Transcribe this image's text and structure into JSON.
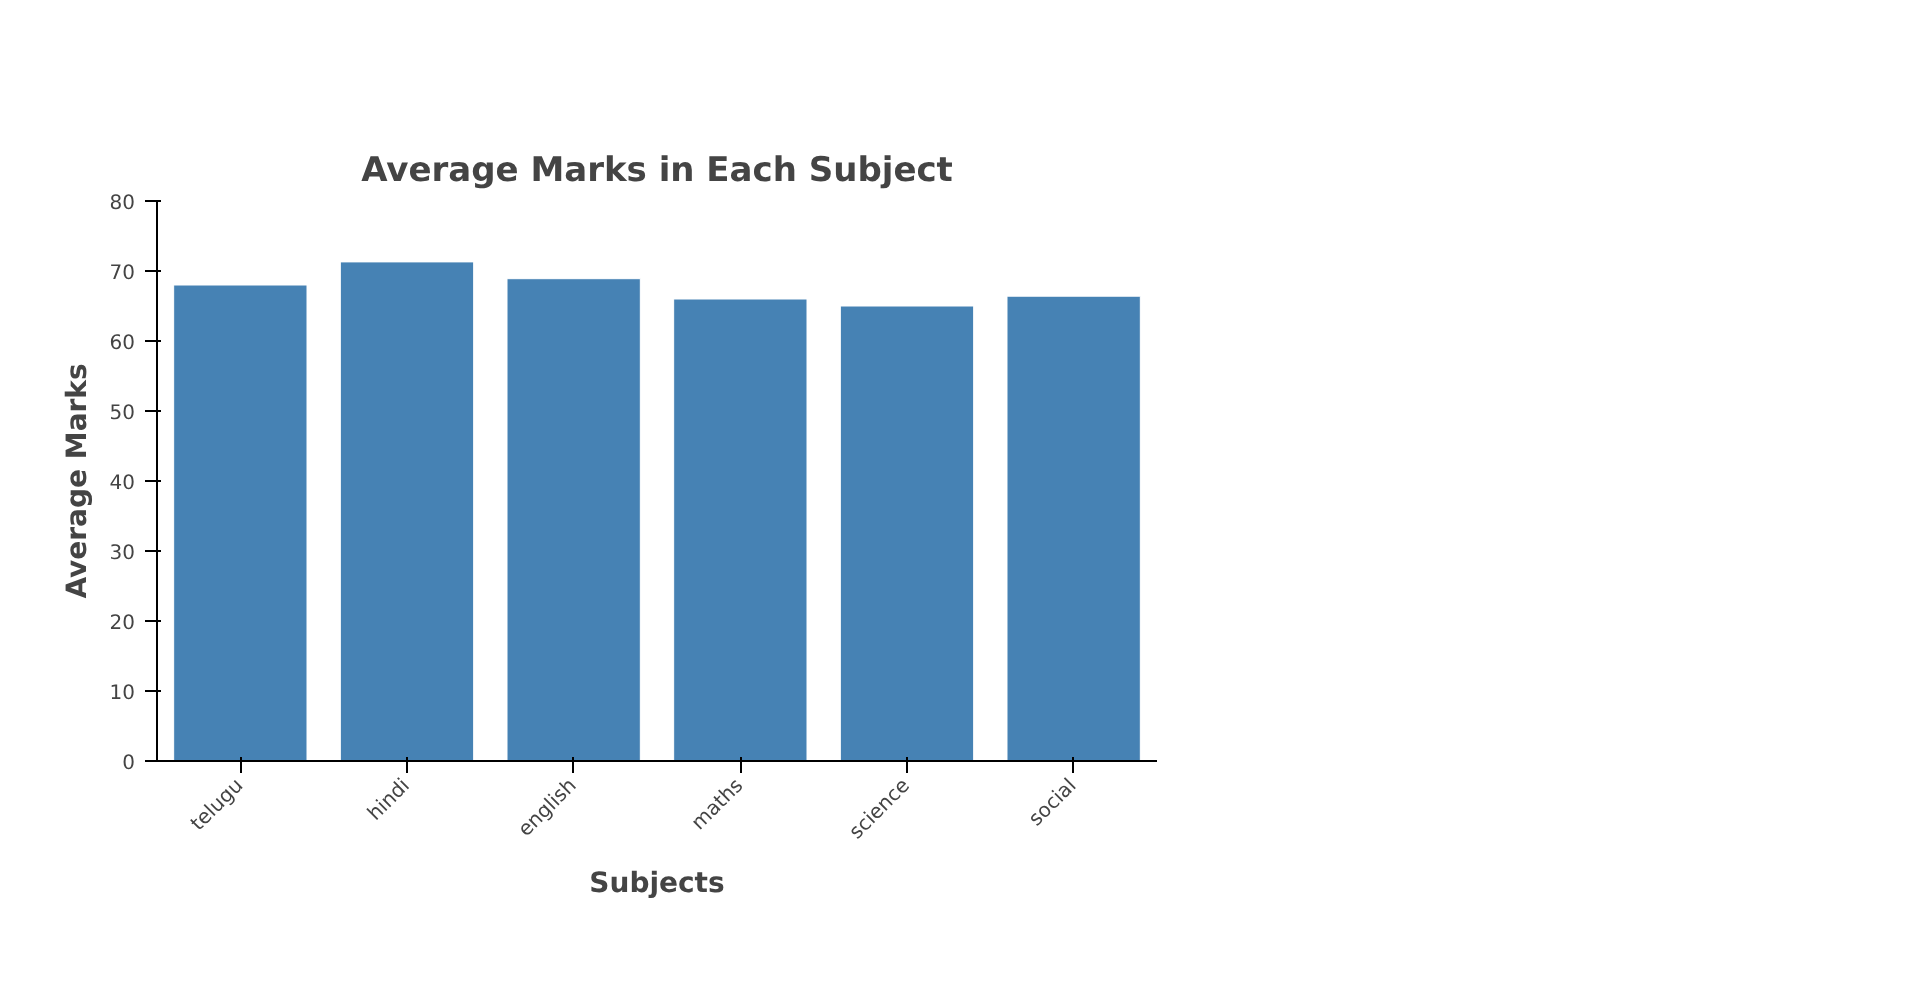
{
  "chart_data": {
    "type": "bar",
    "title": "Average Marks in Each Subject",
    "xlabel": "Subjects",
    "ylabel": "Average Marks",
    "categories": [
      "telugu",
      "hindi",
      "english",
      "maths",
      "science",
      "social"
    ],
    "values": [
      68,
      71.3,
      68.9,
      66,
      65,
      66.4
    ],
    "color": "#4682b4",
    "ylim": [
      0,
      80
    ],
    "yticks": [
      0,
      10,
      20,
      30,
      40,
      50,
      60,
      70,
      80
    ],
    "grid": false
  }
}
